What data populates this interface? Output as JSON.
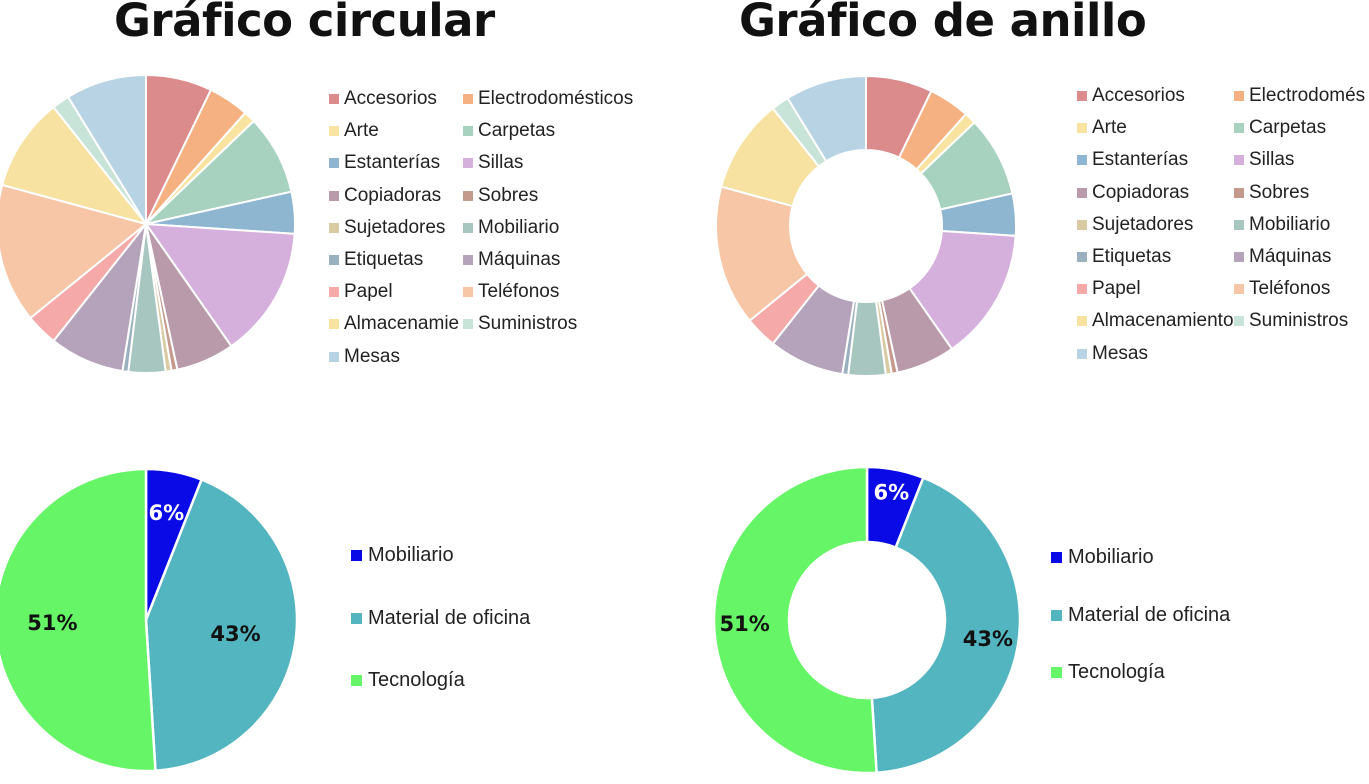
{
  "chart_data": [
    {
      "type": "pie",
      "title": "Gráfico circular",
      "categories": [
        "Accesorios",
        "Electrodomésticos",
        "Arte",
        "Carpetas",
        "Estanterías",
        "Sillas",
        "Copiadoras",
        "Sobres",
        "Sujetadores",
        "Mobiliario",
        "Etiquetas",
        "Máquinas",
        "Papel",
        "Teléfonos",
        "Almacenamie",
        "Suministros",
        "Mesas"
      ],
      "values": [
        6.8,
        4.2,
        1.2,
        8.2,
        4.3,
        13.5,
        6.0,
        0.6,
        0.6,
        3.8,
        0.6,
        7.7,
        3.3,
        14.3,
        9.6,
        1.8,
        8.3
      ],
      "colors": [
        "#db8b8b",
        "#f6b182",
        "#f9e3a0",
        "#a8d2c0",
        "#8fb6d0",
        "#d6b0dc",
        "#b99aaa",
        "#c49a8c",
        "#d8cba2",
        "#a8c6c0",
        "#9ab0be",
        "#b4a3ba",
        "#f6a9a9",
        "#f7c6a6",
        "#f7e2a2",
        "#c8e3d8",
        "#b8d3e4"
      ],
      "legend_position": "right"
    },
    {
      "type": "pie",
      "subtype": "donut",
      "title": "Gráfico de anillo",
      "categories": [
        "Accesorios",
        "Electrodomés",
        "Arte",
        "Carpetas",
        "Estanterías",
        "Sillas",
        "Copiadoras",
        "Sobres",
        "Sujetadores",
        "Mobiliario",
        "Etiquetas",
        "Máquinas",
        "Papel",
        "Teléfonos",
        "Almacenamiento",
        "Suministros",
        "Mesas"
      ],
      "values": [
        6.8,
        4.2,
        1.2,
        8.2,
        4.3,
        13.5,
        6.0,
        0.6,
        0.6,
        3.8,
        0.6,
        7.7,
        3.3,
        14.3,
        9.6,
        1.8,
        8.3
      ],
      "colors": [
        "#db8b8b",
        "#f6b182",
        "#f9e3a0",
        "#a8d2c0",
        "#8fb6d0",
        "#d6b0dc",
        "#b99aaa",
        "#c49a8c",
        "#d8cba2",
        "#a8c6c0",
        "#9ab0be",
        "#b4a3ba",
        "#f6a9a9",
        "#f7c6a6",
        "#f7e2a2",
        "#c8e3d8",
        "#b8d3e4"
      ],
      "legend_position": "right"
    },
    {
      "type": "pie",
      "categories": [
        "Mobiliario",
        "Material de oficina",
        "Tecnología"
      ],
      "values": [
        6,
        43,
        51
      ],
      "labels": [
        "6%",
        "43%",
        "51%"
      ],
      "colors": [
        "#0a0ae6",
        "#52b5bf",
        "#66f566"
      ],
      "legend_position": "right"
    },
    {
      "type": "pie",
      "subtype": "donut",
      "categories": [
        "Mobiliario",
        "Material de oficina",
        "Tecnología"
      ],
      "values": [
        6,
        43,
        51
      ],
      "labels": [
        "6%",
        "43%",
        "51%"
      ],
      "colors": [
        "#0a0ae6",
        "#52b5bf",
        "#66f566"
      ],
      "legend_position": "right"
    }
  ]
}
